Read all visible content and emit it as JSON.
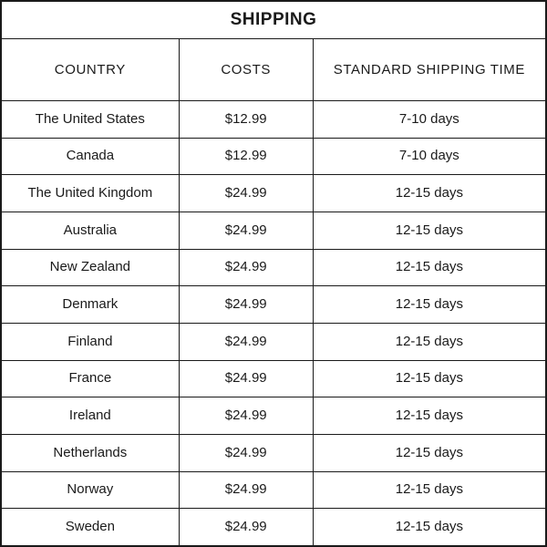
{
  "chart_data": {
    "type": "table",
    "title": "SHIPPING",
    "columns": [
      "COUNTRY",
      "COSTS",
      "STANDARD SHIPPING TIME"
    ],
    "rows": [
      [
        "The United States",
        "$12.99",
        "7-10 days"
      ],
      [
        "Canada",
        "$12.99",
        "7-10 days"
      ],
      [
        "The United Kingdom",
        "$24.99",
        "12-15 days"
      ],
      [
        "Australia",
        "$24.99",
        "12-15 days"
      ],
      [
        "New Zealand",
        "$24.99",
        "12-15 days"
      ],
      [
        "Denmark",
        "$24.99",
        "12-15 days"
      ],
      [
        "Finland",
        "$24.99",
        "12-15 days"
      ],
      [
        "France",
        "$24.99",
        "12-15 days"
      ],
      [
        "Ireland",
        "$24.99",
        "12-15 days"
      ],
      [
        "Netherlands",
        "$24.99",
        "12-15 days"
      ],
      [
        "Norway",
        "$24.99",
        "12-15 days"
      ],
      [
        "Sweden",
        "$24.99",
        "12-15 days"
      ]
    ],
    "layout": {
      "grid": "on",
      "title_position": "top-center",
      "column_width_ratio": [
        195,
        148,
        257
      ]
    }
  },
  "colors": {
    "border": "#1a1a1a",
    "text": "#1a1a1a",
    "background": "#ffffff"
  }
}
